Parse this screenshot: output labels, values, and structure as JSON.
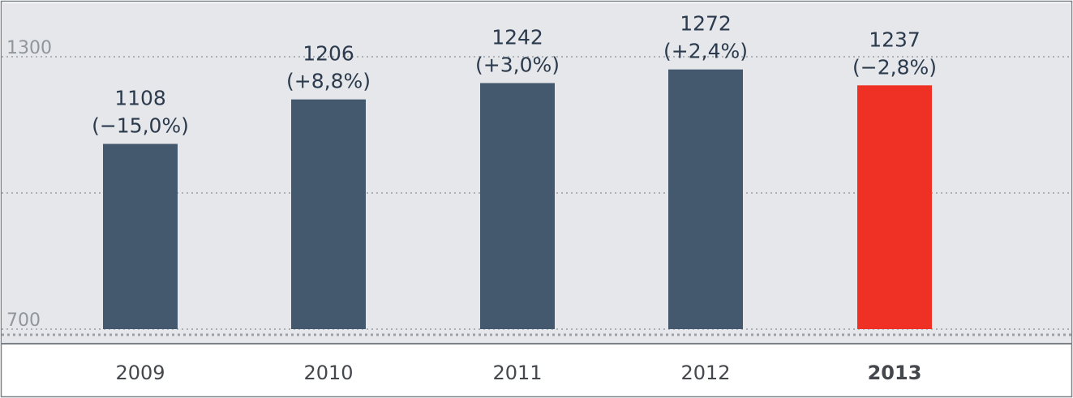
{
  "chart_data": {
    "type": "bar",
    "categories": [
      "2009",
      "2010",
      "2011",
      "2012",
      "2013"
    ],
    "values": [
      1108,
      1206,
      1242,
      1272,
      1237
    ],
    "changes": [
      "(−15,0%)",
      "(+8,8%)",
      "(+3,0%)",
      "(+2,4%)",
      "(−2,8%)"
    ],
    "value_labels": [
      "1108",
      "1206",
      "1242",
      "1272",
      "1237"
    ],
    "highlight_category": "2013",
    "y_ticks": [
      {
        "value": 700,
        "label": "700"
      },
      {
        "value": 1000,
        "label": ""
      },
      {
        "value": 1300,
        "label": "1300"
      }
    ],
    "ylim": [
      700,
      1300
    ],
    "grid": true,
    "colors": {
      "bar": "#45596e",
      "highlight": "#ee3124",
      "plot_bg": "#e6e7ea",
      "grid": "#9aa0a6",
      "tick_label": "#8f969c",
      "value_label": "#2b3a4c",
      "category_label": "#44484d",
      "frame": "#7a8188"
    }
  }
}
